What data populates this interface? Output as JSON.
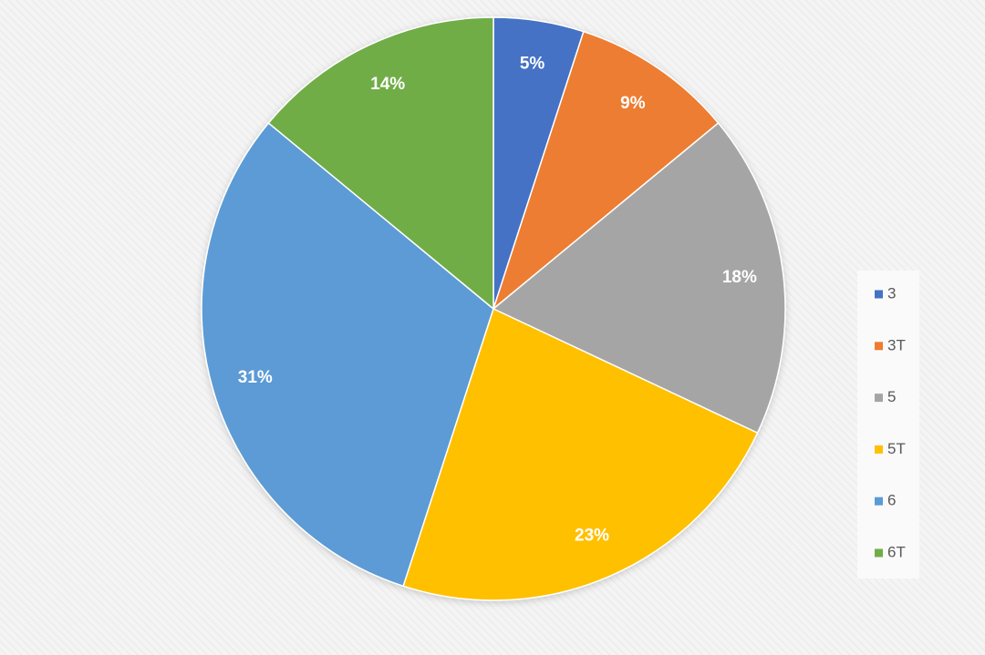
{
  "chart_data": {
    "type": "pie",
    "categories": [
      "3",
      "3T",
      "5",
      "5T",
      "6",
      "6T"
    ],
    "values": [
      5,
      9,
      18,
      23,
      31,
      14
    ],
    "value_labels": [
      "5%",
      "9%",
      "18%",
      "23%",
      "31%",
      "14%"
    ],
    "colors": [
      "#4472c4",
      "#ed7d31",
      "#a5a5a5",
      "#ffc000",
      "#5b9bd5",
      "#70ad47"
    ],
    "legend": "right"
  }
}
